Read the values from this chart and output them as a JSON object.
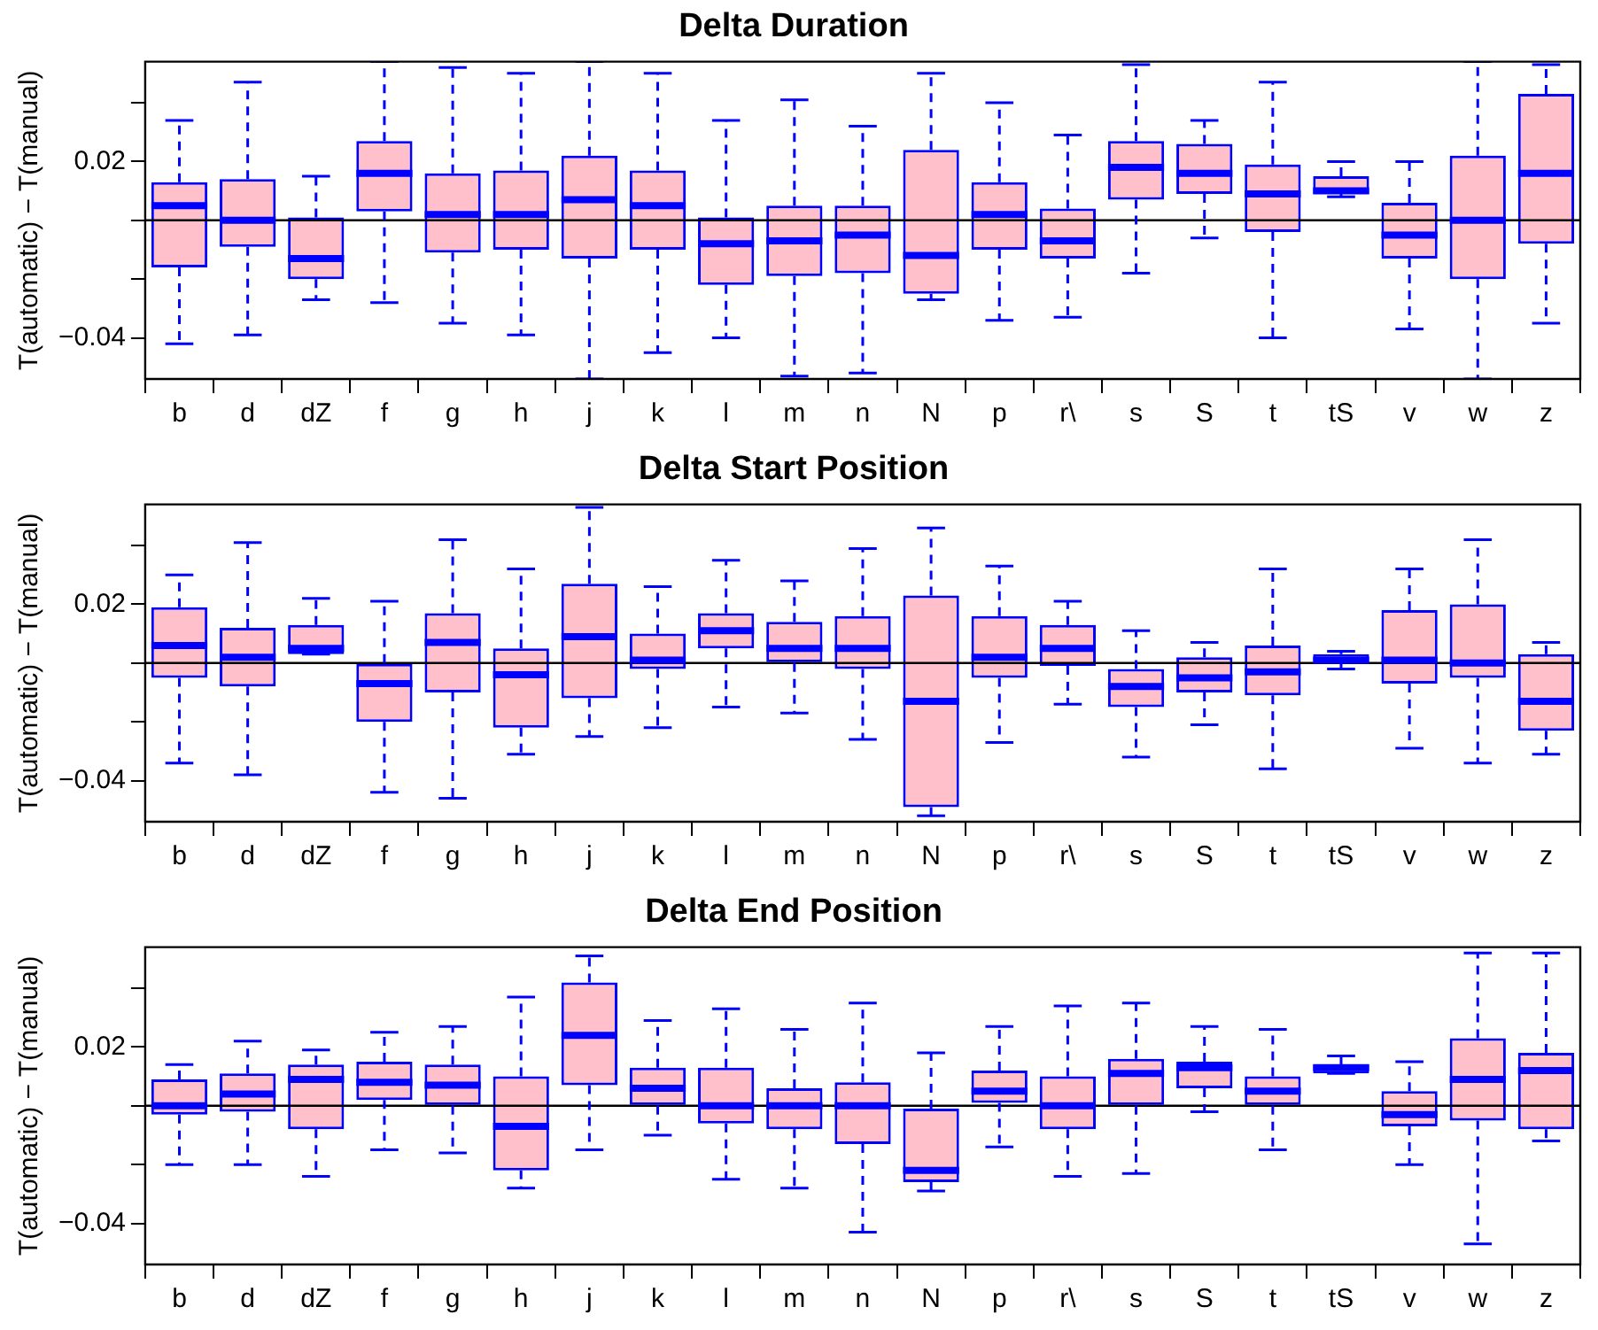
{
  "chart_data": [
    {
      "type": "box",
      "title": "Delta Duration",
      "ylabel": "T(automatic) − T(manual)",
      "categories": [
        "b",
        "d",
        "dZ",
        "f",
        "g",
        "h",
        "j",
        "k",
        "l",
        "m",
        "n",
        "N",
        "p",
        "r\\",
        "s",
        "S",
        "t",
        "tS",
        "v",
        "w",
        "z"
      ],
      "ylim": [
        -0.054,
        0.054
      ],
      "yticks": [
        {
          "value": -0.04,
          "label": "−0.04"
        },
        {
          "value": -0.02,
          "label": null
        },
        {
          "value": 0,
          "label": null
        },
        {
          "value": 0.02,
          "label": "0.02"
        },
        {
          "value": 0.04,
          "label": null
        }
      ],
      "grid": false,
      "ref_lines": [
        {
          "axis": "y",
          "value": 0,
          "color": "#000000"
        }
      ],
      "series": [
        {
          "color": "#0000ff",
          "boxes": [
            {
              "low": -0.042,
              "q1": -0.016,
              "median": 0.005,
              "q3": 0.013,
              "high": 0.034
            },
            {
              "low": -0.039,
              "q1": -0.009,
              "median": 0.0,
              "q3": 0.014,
              "high": 0.047
            },
            {
              "low": -0.027,
              "q1": -0.02,
              "median": -0.013,
              "q3": 0.001,
              "high": 0.015
            },
            {
              "low": -0.028,
              "q1": 0.003,
              "median": 0.016,
              "q3": 0.027,
              "high": 0.054
            },
            {
              "low": -0.035,
              "q1": -0.011,
              "median": 0.002,
              "q3": 0.016,
              "high": 0.052
            },
            {
              "low": -0.039,
              "q1": -0.01,
              "median": 0.002,
              "q3": 0.017,
              "high": 0.05
            },
            {
              "low": -0.054,
              "q1": -0.013,
              "median": 0.007,
              "q3": 0.022,
              "high": 0.054
            },
            {
              "low": -0.045,
              "q1": -0.01,
              "median": 0.005,
              "q3": 0.017,
              "high": 0.05
            },
            {
              "low": -0.04,
              "q1": -0.022,
              "median": -0.008,
              "q3": 0.001,
              "high": 0.034
            },
            {
              "low": -0.053,
              "q1": -0.019,
              "median": -0.007,
              "q3": 0.005,
              "high": 0.041
            },
            {
              "low": -0.052,
              "q1": -0.018,
              "median": -0.005,
              "q3": 0.005,
              "high": 0.032
            },
            {
              "low": -0.027,
              "q1": -0.025,
              "median": -0.012,
              "q3": 0.024,
              "high": 0.05
            },
            {
              "low": -0.034,
              "q1": -0.01,
              "median": 0.002,
              "q3": 0.013,
              "high": 0.04
            },
            {
              "low": -0.033,
              "q1": -0.013,
              "median": -0.007,
              "q3": 0.004,
              "high": 0.029
            },
            {
              "low": -0.018,
              "q1": 0.007,
              "median": 0.018,
              "q3": 0.027,
              "high": 0.053
            },
            {
              "low": -0.006,
              "q1": 0.009,
              "median": 0.016,
              "q3": 0.026,
              "high": 0.034
            },
            {
              "low": -0.04,
              "q1": -0.004,
              "median": 0.009,
              "q3": 0.019,
              "high": 0.047
            },
            {
              "low": 0.008,
              "q1": 0.009,
              "median": 0.01,
              "q3": 0.015,
              "high": 0.02
            },
            {
              "low": -0.037,
              "q1": -0.013,
              "median": -0.005,
              "q3": 0.006,
              "high": 0.02
            },
            {
              "low": -0.054,
              "q1": -0.02,
              "median": 0.0,
              "q3": 0.022,
              "high": 0.054
            },
            {
              "low": -0.035,
              "q1": -0.008,
              "median": 0.016,
              "q3": 0.043,
              "high": 0.053
            }
          ]
        }
      ]
    },
    {
      "type": "box",
      "title": "Delta Start Position",
      "ylabel": "T(automatic) − T(manual)",
      "categories": [
        "b",
        "d",
        "dZ",
        "f",
        "g",
        "h",
        "j",
        "k",
        "l",
        "m",
        "n",
        "N",
        "p",
        "r\\",
        "s",
        "S",
        "t",
        "tS",
        "v",
        "w",
        "z"
      ],
      "ylim": [
        -0.054,
        0.054
      ],
      "yticks": [
        {
          "value": -0.04,
          "label": "−0.04"
        },
        {
          "value": -0.02,
          "label": null
        },
        {
          "value": 0,
          "label": null
        },
        {
          "value": 0.02,
          "label": "0.02"
        },
        {
          "value": 0.04,
          "label": null
        }
      ],
      "grid": false,
      "ref_lines": [
        {
          "axis": "y",
          "value": 0,
          "color": "#000000"
        }
      ],
      "series": [
        {
          "color": "#0000ff",
          "boxes": [
            {
              "low": -0.034,
              "q1": -0.005,
              "median": 0.006,
              "q3": 0.019,
              "high": 0.03
            },
            {
              "low": -0.038,
              "q1": -0.008,
              "median": 0.002,
              "q3": 0.012,
              "high": 0.041
            },
            {
              "low": 0.003,
              "q1": 0.003,
              "median": 0.005,
              "q3": 0.013,
              "high": 0.022
            },
            {
              "low": -0.044,
              "q1": -0.02,
              "median": -0.007,
              "q3": 0.0,
              "high": 0.021
            },
            {
              "low": -0.046,
              "q1": -0.01,
              "median": 0.007,
              "q3": 0.017,
              "high": 0.042
            },
            {
              "low": -0.031,
              "q1": -0.022,
              "median": -0.004,
              "q3": 0.005,
              "high": 0.032
            },
            {
              "low": -0.025,
              "q1": -0.012,
              "median": 0.009,
              "q3": 0.027,
              "high": 0.053
            },
            {
              "low": -0.022,
              "q1": -0.002,
              "median": 0.001,
              "q3": 0.01,
              "high": 0.026
            },
            {
              "low": -0.015,
              "q1": 0.005,
              "median": 0.011,
              "q3": 0.017,
              "high": 0.035
            },
            {
              "low": -0.017,
              "q1": 0.0,
              "median": 0.005,
              "q3": 0.014,
              "high": 0.028
            },
            {
              "low": -0.026,
              "q1": -0.002,
              "median": 0.005,
              "q3": 0.016,
              "high": 0.039
            },
            {
              "low": -0.052,
              "q1": -0.049,
              "median": -0.013,
              "q3": 0.023,
              "high": 0.046
            },
            {
              "low": -0.027,
              "q1": -0.005,
              "median": 0.002,
              "q3": 0.016,
              "high": 0.033
            },
            {
              "low": -0.014,
              "q1": -0.001,
              "median": 0.005,
              "q3": 0.013,
              "high": 0.021
            },
            {
              "low": -0.032,
              "q1": -0.015,
              "median": -0.008,
              "q3": -0.002,
              "high": 0.011
            },
            {
              "low": -0.021,
              "q1": -0.01,
              "median": -0.005,
              "q3": 0.002,
              "high": 0.007
            },
            {
              "low": -0.036,
              "q1": -0.011,
              "median": -0.003,
              "q3": 0.006,
              "high": 0.032
            },
            {
              "low": -0.002,
              "q1": 0.0,
              "median": 0.001,
              "q3": 0.003,
              "high": 0.004
            },
            {
              "low": -0.029,
              "q1": -0.007,
              "median": 0.001,
              "q3": 0.018,
              "high": 0.032
            },
            {
              "low": -0.034,
              "q1": -0.005,
              "median": 0.0,
              "q3": 0.02,
              "high": 0.042
            },
            {
              "low": -0.031,
              "q1": -0.023,
              "median": -0.013,
              "q3": 0.003,
              "high": 0.007
            }
          ]
        }
      ]
    },
    {
      "type": "box",
      "title": "Delta End Position",
      "ylabel": "T(automatic) − T(manual)",
      "categories": [
        "b",
        "d",
        "dZ",
        "f",
        "g",
        "h",
        "j",
        "k",
        "l",
        "m",
        "n",
        "N",
        "p",
        "r\\",
        "s",
        "S",
        "t",
        "tS",
        "v",
        "w",
        "z"
      ],
      "ylim": [
        -0.054,
        0.054
      ],
      "yticks": [
        {
          "value": -0.04,
          "label": "−0.04"
        },
        {
          "value": -0.02,
          "label": null
        },
        {
          "value": 0,
          "label": null
        },
        {
          "value": 0.02,
          "label": "0.02"
        },
        {
          "value": 0.04,
          "label": null
        }
      ],
      "grid": false,
      "ref_lines": [
        {
          "axis": "y",
          "value": 0,
          "color": "#000000"
        }
      ],
      "series": [
        {
          "color": "#0000ff",
          "boxes": [
            {
              "low": -0.02,
              "q1": -0.003,
              "median": 0.0,
              "q3": 0.009,
              "high": 0.014
            },
            {
              "low": -0.02,
              "q1": -0.002,
              "median": 0.004,
              "q3": 0.011,
              "high": 0.022
            },
            {
              "low": -0.024,
              "q1": -0.008,
              "median": 0.009,
              "q3": 0.014,
              "high": 0.019
            },
            {
              "low": -0.015,
              "q1": 0.002,
              "median": 0.008,
              "q3": 0.015,
              "high": 0.025
            },
            {
              "low": -0.016,
              "q1": 0.0,
              "median": 0.007,
              "q3": 0.014,
              "high": 0.027
            },
            {
              "low": -0.028,
              "q1": -0.022,
              "median": -0.007,
              "q3": 0.01,
              "high": 0.037
            },
            {
              "low": -0.015,
              "q1": 0.007,
              "median": 0.024,
              "q3": 0.042,
              "high": 0.051
            },
            {
              "low": -0.01,
              "q1": 0.0,
              "median": 0.006,
              "q3": 0.013,
              "high": 0.029
            },
            {
              "low": -0.025,
              "q1": -0.006,
              "median": 0.0,
              "q3": 0.013,
              "high": 0.033
            },
            {
              "low": -0.028,
              "q1": -0.008,
              "median": 0.0,
              "q3": 0.006,
              "high": 0.026
            },
            {
              "low": -0.043,
              "q1": -0.013,
              "median": 0.0,
              "q3": 0.008,
              "high": 0.035
            },
            {
              "low": -0.029,
              "q1": -0.026,
              "median": -0.022,
              "q3": -0.001,
              "high": 0.018
            },
            {
              "low": -0.014,
              "q1": 0.001,
              "median": 0.005,
              "q3": 0.012,
              "high": 0.027
            },
            {
              "low": -0.024,
              "q1": -0.008,
              "median": 0.0,
              "q3": 0.01,
              "high": 0.034
            },
            {
              "low": -0.023,
              "q1": 0.0,
              "median": 0.011,
              "q3": 0.016,
              "high": 0.035
            },
            {
              "low": -0.002,
              "q1": 0.006,
              "median": 0.013,
              "q3": 0.015,
              "high": 0.027
            },
            {
              "low": -0.015,
              "q1": 0.0,
              "median": 0.005,
              "q3": 0.01,
              "high": 0.026
            },
            {
              "low": 0.011,
              "q1": 0.011,
              "median": 0.013,
              "q3": 0.014,
              "high": 0.017
            },
            {
              "low": -0.02,
              "q1": -0.007,
              "median": -0.003,
              "q3": 0.005,
              "high": 0.015
            },
            {
              "low": -0.047,
              "q1": -0.005,
              "median": 0.009,
              "q3": 0.023,
              "high": 0.052
            },
            {
              "low": -0.012,
              "q1": -0.008,
              "median": 0.012,
              "q3": 0.018,
              "high": 0.052
            }
          ]
        }
      ]
    }
  ]
}
